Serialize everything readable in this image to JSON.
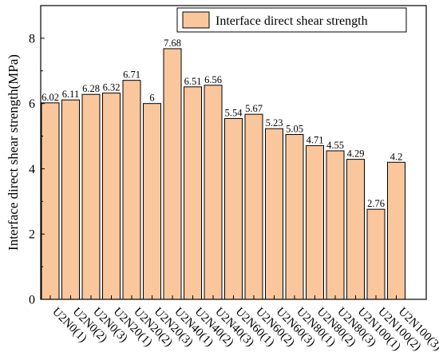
{
  "chart_data": {
    "type": "bar",
    "title": "",
    "xlabel": "",
    "ylabel": "Interface direct shear strength(MPa)",
    "ylim": [
      0,
      9
    ],
    "yticks": [
      0,
      2,
      4,
      6,
      8
    ],
    "grid": false,
    "legend_position": "top-right",
    "series": [
      {
        "name": "Interface direct shear strength",
        "color": "#F9C79B",
        "edge_color": "#000000",
        "values": [
          6.02,
          6.11,
          6.28,
          6.32,
          6.71,
          6,
          7.68,
          6.51,
          6.56,
          5.54,
          5.67,
          5.23,
          5.05,
          4.71,
          4.55,
          4.29,
          2.76,
          4.2
        ]
      }
    ],
    "categories": [
      "U2N0(1)",
      "U2N0(2)",
      "U2N0(3)",
      "U2N20(1)",
      "U2N20(2)",
      "U2N20(3)",
      "U2N40(1)",
      "U2N40(2)",
      "U2N40(3)",
      "U2N60(1)",
      "U2N60(2)",
      "U2N60(3)",
      "U2N80(1)",
      "U2N80(2)",
      "U2N80(3)",
      "U2N100(1)",
      "U2N100(2)",
      "U2N100(3)"
    ],
    "data_labels": [
      "6.02",
      "6.11",
      "6.28",
      "6.32",
      "6.71",
      "6",
      "7.68",
      "6.51",
      "6.56",
      "5.54",
      "5.67",
      "5.23",
      "5.05",
      "4.71",
      "4.55",
      "4.29",
      "2.76",
      "4.2"
    ]
  }
}
